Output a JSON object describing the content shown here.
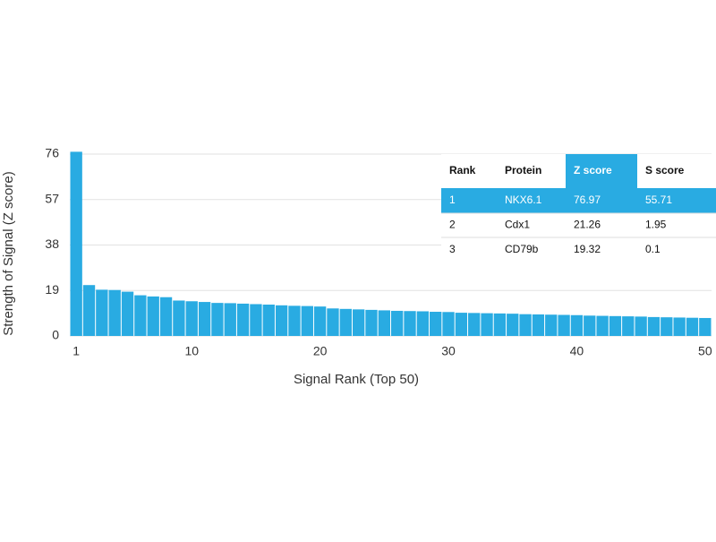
{
  "chart_data": {
    "type": "bar",
    "x_label": "Signal Rank (Top 50)",
    "y_label": "Strength of Signal (Z score)",
    "x": [
      1,
      2,
      3,
      4,
      5,
      6,
      7,
      8,
      9,
      10,
      11,
      12,
      13,
      14,
      15,
      16,
      17,
      18,
      19,
      20,
      21,
      22,
      23,
      24,
      25,
      26,
      27,
      28,
      29,
      30,
      31,
      32,
      33,
      34,
      35,
      36,
      37,
      38,
      39,
      40,
      41,
      42,
      43,
      44,
      45,
      46,
      47,
      48,
      49,
      50
    ],
    "values": [
      76.97,
      21.26,
      19.32,
      19.2,
      18.5,
      17,
      16.5,
      16.2,
      14.8,
      14.5,
      14.2,
      13.8,
      13.7,
      13.5,
      13.3,
      13.1,
      12.8,
      12.6,
      12.5,
      12.3,
      11.5,
      11.3,
      11.1,
      10.9,
      10.7,
      10.5,
      10.4,
      10.3,
      10.1,
      10,
      9.7,
      9.6,
      9.5,
      9.4,
      9.3,
      9.1,
      9,
      8.9,
      8.8,
      8.7,
      8.5,
      8.4,
      8.3,
      8.2,
      8.1,
      7.9,
      7.8,
      7.7,
      7.6,
      7.5
    ],
    "color": "#29abe2",
    "xlim": [
      0.5,
      50.5
    ],
    "xticks": [
      1,
      10,
      20,
      30,
      40,
      50
    ],
    "ylim": [
      0,
      76
    ],
    "yticks": [
      0,
      19,
      38,
      57,
      76
    ],
    "grid": true
  },
  "table": {
    "columns": [
      "Rank",
      "Protein",
      "Z score",
      "S score"
    ],
    "rows": [
      [
        "1",
        "NKX6.1",
        "76.97",
        "55.71"
      ],
      [
        "2",
        "Cdx1",
        "21.26",
        "1.95"
      ],
      [
        "3",
        "CD79b",
        "19.32",
        "0.1"
      ]
    ],
    "highlight_color": "#29abe2"
  }
}
